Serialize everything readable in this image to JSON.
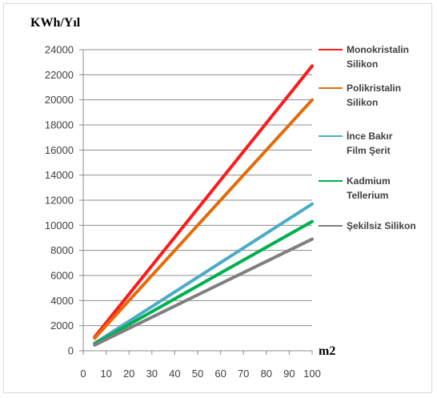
{
  "chart_data": {
    "type": "line",
    "ylabel": "KWh/Yıl",
    "xlabel": "m2",
    "xlim": [
      0,
      100
    ],
    "ylim": [
      0,
      24000
    ],
    "x_ticks": [
      0,
      10,
      20,
      30,
      40,
      50,
      60,
      70,
      80,
      90,
      100
    ],
    "y_ticks": [
      0,
      2000,
      4000,
      6000,
      8000,
      10000,
      12000,
      14000,
      16000,
      18000,
      20000,
      22000,
      24000
    ],
    "grid": "horizontal",
    "legend_position": "right",
    "series": [
      {
        "name": "Monokristalin Silikon",
        "legend_lines": [
          "Monokristalin",
          "Silikon"
        ],
        "color": "#ff1a1a",
        "x": [
          5,
          100
        ],
        "y": [
          1100,
          22700
        ]
      },
      {
        "name": "Polikristalin Silikon",
        "legend_lines": [
          "Polikristalin",
          "Silikon"
        ],
        "color": "#e36c0a",
        "x": [
          5,
          100
        ],
        "y": [
          1000,
          20000
        ]
      },
      {
        "name": "İnce Bakır Film Şerit",
        "legend_lines": [
          "İnce Bakır",
          "Film Şerit"
        ],
        "color": "#4bacc6",
        "x": [
          5,
          100
        ],
        "y": [
          600,
          11700
        ]
      },
      {
        "name": "Kadmium Tellerium",
        "legend_lines": [
          "Kadmium",
          "Tellerium"
        ],
        "color": "#00b050",
        "x": [
          5,
          100
        ],
        "y": [
          550,
          10300
        ]
      },
      {
        "name": "Şekilsiz Silikon",
        "legend_lines": [
          "Şekilsiz Silikon"
        ],
        "color": "#7f7f7f",
        "x": [
          5,
          100
        ],
        "y": [
          450,
          8900
        ]
      }
    ]
  }
}
